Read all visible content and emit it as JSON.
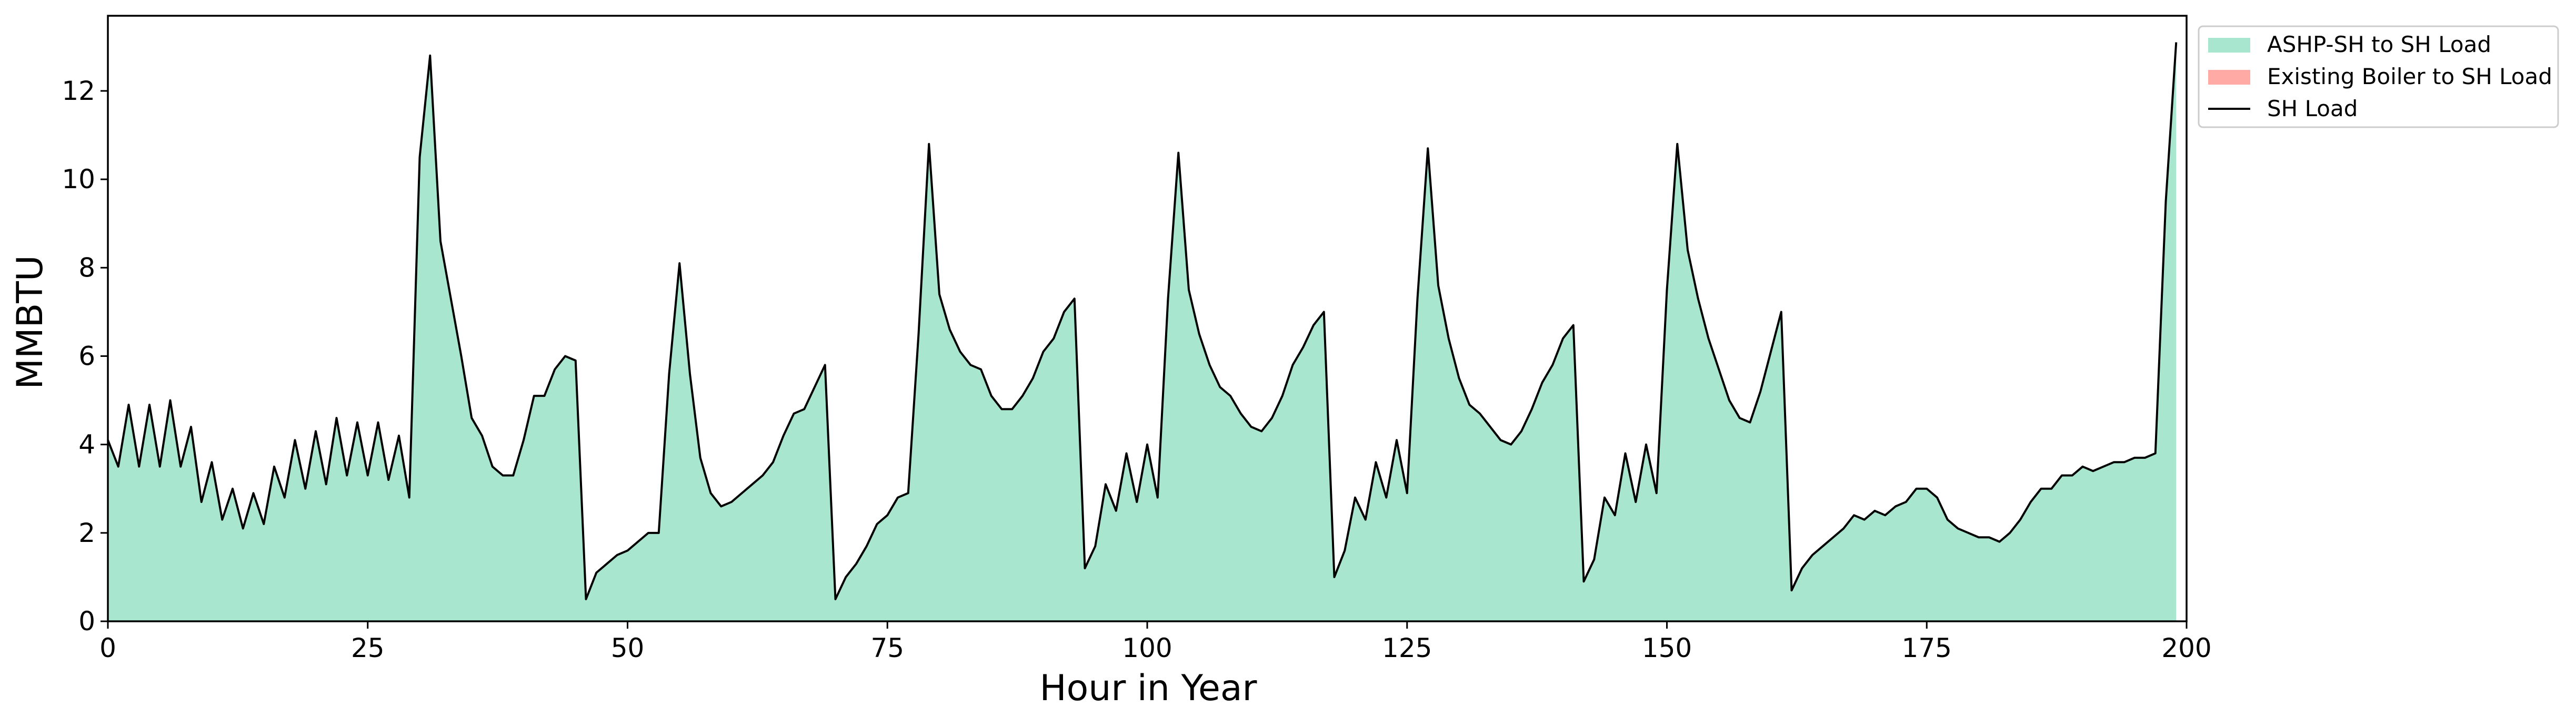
{
  "chart_data": {
    "type": "area",
    "title": "",
    "xlabel": "Hour in Year",
    "ylabel": "MMBTU",
    "xlim": [
      0,
      200
    ],
    "ylim": [
      0,
      13.7
    ],
    "xticks": [
      0,
      25,
      50,
      75,
      100,
      125,
      150,
      175,
      200
    ],
    "yticks": [
      0,
      2,
      4,
      6,
      8,
      10,
      12
    ],
    "grid": false,
    "legend_position": "outside-top-right",
    "colors": {
      "ashp": "#a8e6cf",
      "boiler": "#ffaaa5",
      "load": "#000000"
    },
    "x": [
      0,
      1,
      2,
      3,
      4,
      5,
      6,
      7,
      8,
      9,
      10,
      11,
      12,
      13,
      14,
      15,
      16,
      17,
      18,
      19,
      20,
      21,
      22,
      23,
      24,
      25,
      26,
      27,
      28,
      29,
      30,
      31,
      32,
      33,
      34,
      35,
      36,
      37,
      38,
      39,
      40,
      41,
      42,
      43,
      44,
      45,
      46,
      47,
      48,
      49,
      50,
      51,
      52,
      53,
      54,
      55,
      56,
      57,
      58,
      59,
      60,
      61,
      62,
      63,
      64,
      65,
      66,
      67,
      68,
      69,
      70,
      71,
      72,
      73,
      74,
      75,
      76,
      77,
      78,
      79,
      80,
      81,
      82,
      83,
      84,
      85,
      86,
      87,
      88,
      89,
      90,
      91,
      92,
      93,
      94,
      95,
      96,
      97,
      98,
      99,
      100,
      101,
      102,
      103,
      104,
      105,
      106,
      107,
      108,
      109,
      110,
      111,
      112,
      113,
      114,
      115,
      116,
      117,
      118,
      119,
      120,
      121,
      122,
      123,
      124,
      125,
      126,
      127,
      128,
      129,
      130,
      131,
      132,
      133,
      134,
      135,
      136,
      137,
      138,
      139,
      140,
      141,
      142,
      143,
      144,
      145,
      146,
      147,
      148,
      149,
      150,
      151,
      152,
      153,
      154,
      155,
      156,
      157,
      158,
      159,
      160,
      161,
      162,
      163,
      164,
      165,
      166,
      167,
      168,
      169,
      170,
      171,
      172,
      173,
      174,
      175,
      176,
      177,
      178,
      179,
      180,
      181,
      182,
      183,
      184,
      185,
      186,
      187,
      188,
      189,
      190,
      191,
      192,
      193,
      194,
      195,
      196,
      197,
      198,
      199
    ],
    "series": [
      {
        "name": "ASHP-SH to SH Load",
        "kind": "area",
        "values": [
          4.1,
          3.5,
          4.9,
          3.5,
          4.9,
          3.5,
          5.0,
          3.5,
          4.4,
          2.7,
          3.6,
          2.3,
          3.0,
          2.1,
          2.9,
          2.2,
          3.5,
          2.8,
          4.1,
          3.0,
          4.3,
          3.1,
          4.6,
          3.3,
          4.5,
          3.3,
          4.5,
          3.2,
          4.2,
          2.8,
          10.5,
          12.8,
          8.6,
          7.3,
          6.0,
          4.6,
          4.2,
          3.5,
          3.3,
          3.3,
          4.1,
          5.1,
          5.1,
          5.7,
          6.0,
          5.9,
          0.5,
          1.1,
          1.3,
          1.5,
          1.6,
          1.8,
          2.0,
          2.0,
          5.6,
          8.1,
          5.6,
          3.7,
          2.9,
          2.6,
          2.7,
          2.9,
          3.1,
          3.3,
          3.6,
          4.2,
          4.7,
          4.8,
          5.3,
          5.8,
          0.5,
          1.0,
          1.3,
          1.7,
          2.2,
          2.4,
          2.8,
          2.9,
          6.5,
          10.8,
          7.4,
          6.6,
          6.1,
          5.8,
          5.7,
          5.1,
          4.8,
          4.8,
          5.1,
          5.5,
          6.1,
          6.4,
          7.0,
          7.3,
          1.2,
          1.7,
          3.1,
          2.5,
          3.8,
          2.7,
          4.0,
          2.8,
          7.3,
          10.6,
          7.5,
          6.5,
          5.8,
          5.3,
          5.1,
          4.7,
          4.4,
          4.3,
          4.6,
          5.1,
          5.8,
          6.2,
          6.7,
          7.0,
          1.0,
          1.6,
          2.8,
          2.3,
          3.6,
          2.8,
          4.1,
          2.9,
          7.3,
          10.7,
          7.6,
          6.4,
          5.5,
          4.9,
          4.7,
          4.4,
          4.1,
          4.0,
          4.3,
          4.8,
          5.4,
          5.8,
          6.4,
          6.7,
          0.9,
          1.4,
          2.8,
          2.4,
          3.8,
          2.7,
          4.0,
          2.9,
          7.5,
          10.8,
          8.4,
          7.3,
          6.4,
          5.7,
          5.0,
          4.6,
          4.5,
          5.2,
          6.1,
          7.0,
          0.7,
          1.2,
          1.5,
          1.7,
          1.9,
          2.1,
          2.4,
          2.3,
          2.5,
          2.4,
          2.6,
          2.7,
          3.0,
          3.0,
          2.8,
          2.3,
          2.1,
          2.0,
          1.9,
          1.9,
          1.8,
          2.0,
          2.3,
          2.7,
          3.0,
          3.0,
          3.3,
          3.3,
          3.5,
          3.4,
          3.5,
          3.6,
          3.6,
          3.7,
          3.7,
          3.8,
          9.5,
          13.1
        ]
      },
      {
        "name": "Existing Boiler to SH Load",
        "kind": "area",
        "values": [
          0,
          0,
          0,
          0,
          0,
          0,
          0,
          0,
          0,
          0,
          0,
          0,
          0,
          0,
          0,
          0,
          0,
          0,
          0,
          0,
          0,
          0,
          0,
          0,
          0,
          0,
          0,
          0,
          0,
          0,
          0,
          0,
          0,
          0,
          0,
          0,
          0,
          0,
          0,
          0,
          0,
          0,
          0,
          0,
          0,
          0,
          0,
          0,
          0,
          0,
          0,
          0,
          0,
          0,
          0,
          0,
          0,
          0,
          0,
          0,
          0,
          0,
          0,
          0,
          0,
          0,
          0,
          0,
          0,
          0,
          0,
          0,
          0,
          0,
          0,
          0,
          0,
          0,
          0,
          0,
          0,
          0,
          0,
          0,
          0,
          0,
          0,
          0,
          0,
          0,
          0,
          0,
          0,
          0,
          0,
          0,
          0,
          0,
          0,
          0,
          0,
          0,
          0,
          0,
          0,
          0,
          0,
          0,
          0,
          0,
          0,
          0,
          0,
          0,
          0,
          0,
          0,
          0,
          0,
          0,
          0,
          0,
          0,
          0,
          0,
          0,
          0,
          0,
          0,
          0,
          0,
          0,
          0,
          0,
          0,
          0,
          0,
          0,
          0,
          0,
          0,
          0,
          0,
          0,
          0,
          0,
          0,
          0,
          0,
          0,
          0,
          0,
          0,
          0,
          0,
          0,
          0,
          0,
          0,
          0,
          0,
          0,
          0,
          0,
          0,
          0,
          0,
          0,
          0,
          0,
          0,
          0,
          0,
          0,
          0,
          0,
          0,
          0,
          0,
          0,
          0,
          0,
          0,
          0,
          0,
          0,
          0,
          0,
          0,
          0,
          0,
          0,
          0,
          0,
          0,
          0,
          0,
          0,
          0,
          0
        ]
      },
      {
        "name": "SH Load",
        "kind": "line",
        "values": [
          4.1,
          3.5,
          4.9,
          3.5,
          4.9,
          3.5,
          5.0,
          3.5,
          4.4,
          2.7,
          3.6,
          2.3,
          3.0,
          2.1,
          2.9,
          2.2,
          3.5,
          2.8,
          4.1,
          3.0,
          4.3,
          3.1,
          4.6,
          3.3,
          4.5,
          3.3,
          4.5,
          3.2,
          4.2,
          2.8,
          10.5,
          12.8,
          8.6,
          7.3,
          6.0,
          4.6,
          4.2,
          3.5,
          3.3,
          3.3,
          4.1,
          5.1,
          5.1,
          5.7,
          6.0,
          5.9,
          0.5,
          1.1,
          1.3,
          1.5,
          1.6,
          1.8,
          2.0,
          2.0,
          5.6,
          8.1,
          5.6,
          3.7,
          2.9,
          2.6,
          2.7,
          2.9,
          3.1,
          3.3,
          3.6,
          4.2,
          4.7,
          4.8,
          5.3,
          5.8,
          0.5,
          1.0,
          1.3,
          1.7,
          2.2,
          2.4,
          2.8,
          2.9,
          6.5,
          10.8,
          7.4,
          6.6,
          6.1,
          5.8,
          5.7,
          5.1,
          4.8,
          4.8,
          5.1,
          5.5,
          6.1,
          6.4,
          7.0,
          7.3,
          1.2,
          1.7,
          3.1,
          2.5,
          3.8,
          2.7,
          4.0,
          2.8,
          7.3,
          10.6,
          7.5,
          6.5,
          5.8,
          5.3,
          5.1,
          4.7,
          4.4,
          4.3,
          4.6,
          5.1,
          5.8,
          6.2,
          6.7,
          7.0,
          1.0,
          1.6,
          2.8,
          2.3,
          3.6,
          2.8,
          4.1,
          2.9,
          7.3,
          10.7,
          7.6,
          6.4,
          5.5,
          4.9,
          4.7,
          4.4,
          4.1,
          4.0,
          4.3,
          4.8,
          5.4,
          5.8,
          6.4,
          6.7,
          0.9,
          1.4,
          2.8,
          2.4,
          3.8,
          2.7,
          4.0,
          2.9,
          7.5,
          10.8,
          8.4,
          7.3,
          6.4,
          5.7,
          5.0,
          4.6,
          4.5,
          5.2,
          6.1,
          7.0,
          0.7,
          1.2,
          1.5,
          1.7,
          1.9,
          2.1,
          2.4,
          2.3,
          2.5,
          2.4,
          2.6,
          2.7,
          3.0,
          3.0,
          2.8,
          2.3,
          2.1,
          2.0,
          1.9,
          1.9,
          1.8,
          2.0,
          2.3,
          2.7,
          3.0,
          3.0,
          3.3,
          3.3,
          3.5,
          3.4,
          3.5,
          3.6,
          3.6,
          3.7,
          3.7,
          3.8,
          9.5,
          13.1
        ]
      }
    ]
  }
}
